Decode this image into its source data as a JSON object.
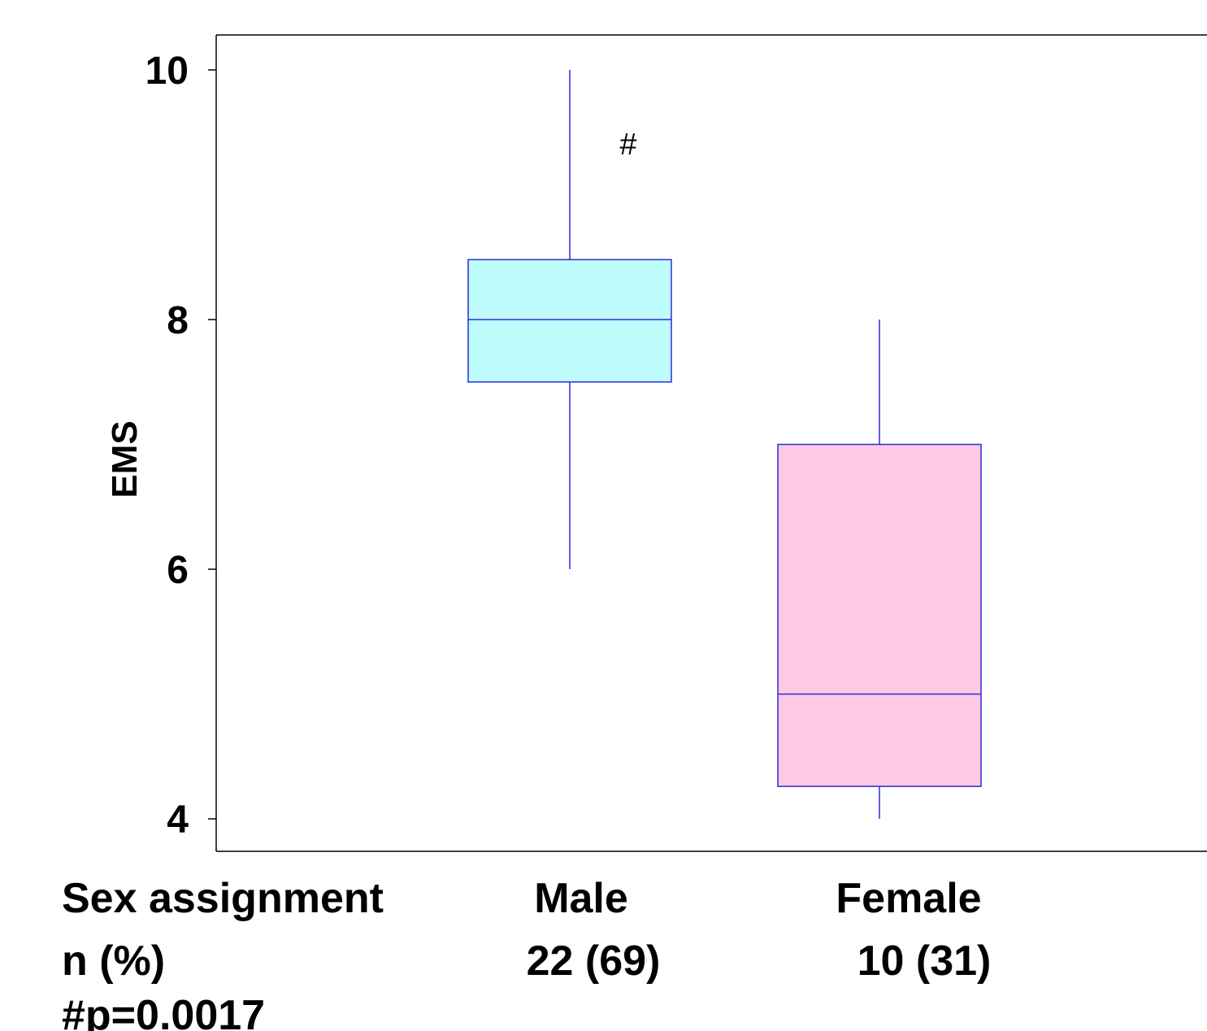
{
  "chart_data": {
    "type": "box",
    "ylabel": "EMS",
    "ylim": [
      3.74,
      10.28
    ],
    "yticks": [
      "4",
      "6",
      "8",
      "10"
    ],
    "yticks_values": [
      4,
      6,
      8,
      10
    ],
    "grid": false,
    "series": [
      {
        "category": "Male",
        "min": 6,
        "q1": 7.5,
        "median": 8,
        "q3": 8.48,
        "max": 10,
        "fill": "#bffcfc",
        "stroke": "#2b2bdc"
      },
      {
        "category": "Female",
        "min": 4,
        "q1": 4.26,
        "median": 5,
        "q3": 7,
        "max": 8,
        "fill": "#fdc9e3",
        "stroke": "#2b2bdc"
      }
    ],
    "annotations": [
      {
        "text": "#",
        "series": "Male",
        "y": 9.4
      }
    ]
  },
  "table": {
    "row1": {
      "label": "Sex assignment",
      "male": "Male",
      "female": "Female"
    },
    "row2": {
      "label": "n (%)",
      "male": "22 (69)",
      "female": "10 (31)"
    },
    "footnote": "#p=0.0017"
  }
}
